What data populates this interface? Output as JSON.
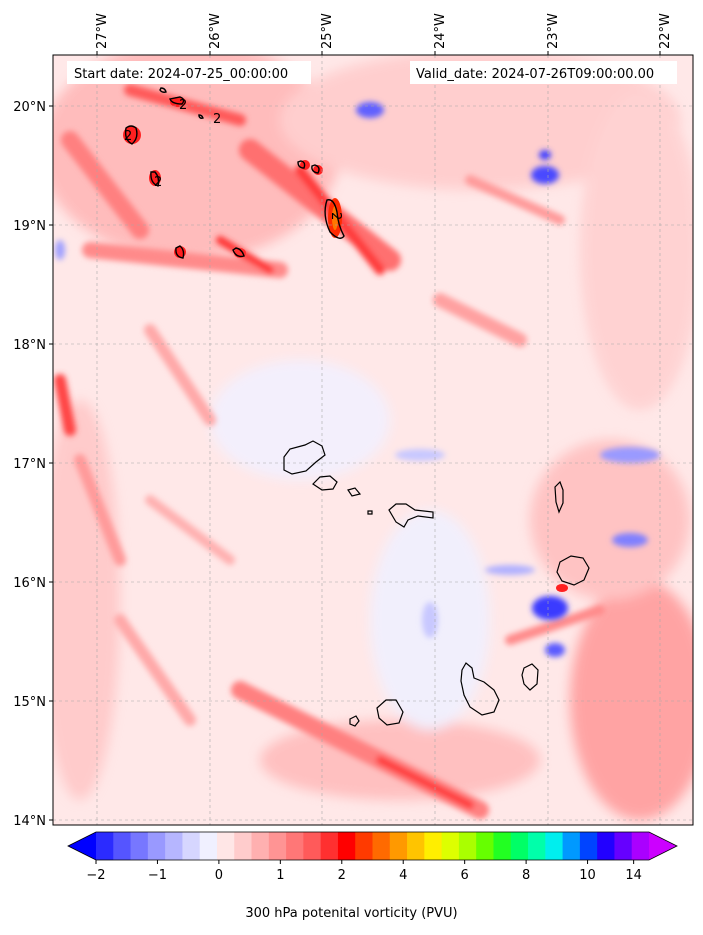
{
  "map": {
    "start_label": "Start date: 2024-07-25_00:00:00",
    "valid_label": "Valid_date: 2024-07-26T09:00:00.00",
    "lon_labels": [
      "27°W",
      "26°W",
      "25°W",
      "24°W",
      "23°W",
      "22°W"
    ],
    "lat_labels": [
      "20°N",
      "19°N",
      "18°N",
      "17°N",
      "16°N",
      "15°N",
      "14°N"
    ],
    "contour_label": "2"
  },
  "colorbar": {
    "title": "300 hPa potenital vorticity (PVU)",
    "tick_labels": [
      "−2",
      "−1",
      "0",
      "1",
      "2",
      "4",
      "6",
      "8",
      "10",
      "14"
    ],
    "colors": [
      "#0000ff",
      "#2b2bff",
      "#5555ff",
      "#7777ff",
      "#9999ff",
      "#b6b6ff",
      "#d6d6ff",
      "#f0f0ff",
      "#ffe6e6",
      "#ffcccc",
      "#ffb0b0",
      "#ff9494",
      "#ff7777",
      "#ff5a5a",
      "#ff3030",
      "#ff0000",
      "#ff3a00",
      "#ff6a00",
      "#ff9900",
      "#ffc400",
      "#ffee00",
      "#ddff00",
      "#aaff00",
      "#66ff00",
      "#22ff22",
      "#00ff66",
      "#00ffaa",
      "#00eeee",
      "#0099ff",
      "#0044ff",
      "#2200ff",
      "#6600ff",
      "#aa00ff",
      "#cc00ff"
    ]
  }
}
